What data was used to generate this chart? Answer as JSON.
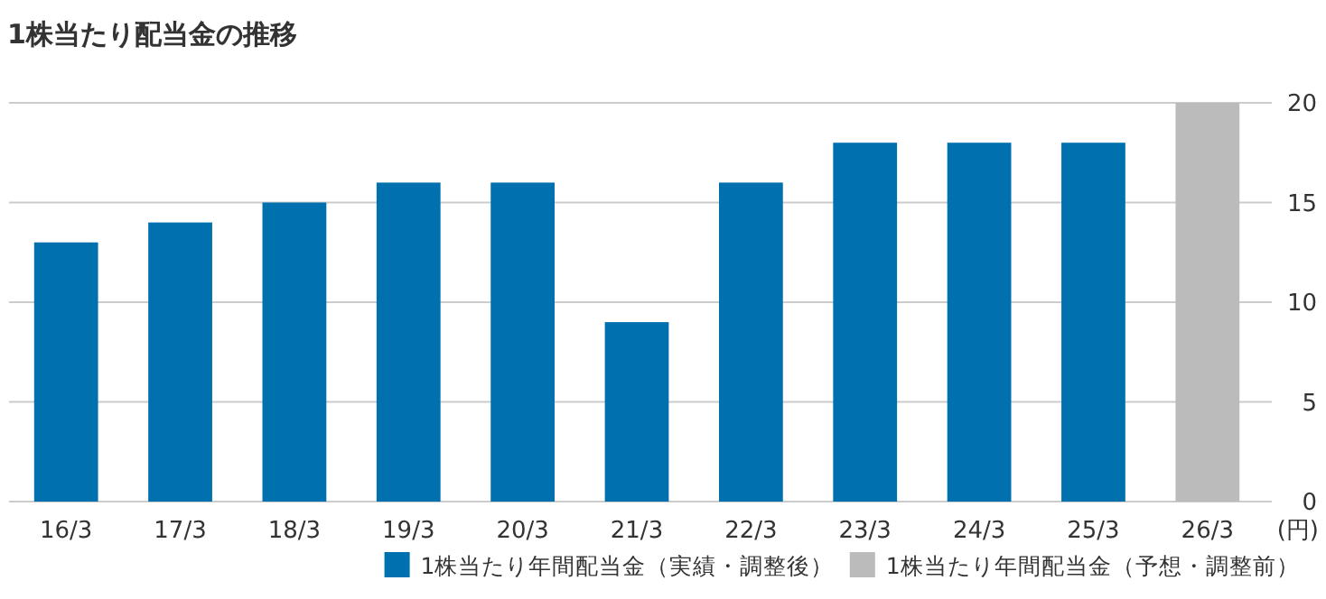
{
  "chart_data": {
    "type": "bar",
    "title": "1株当たり配当金の推移",
    "ylabel": "(円)",
    "categories": [
      "16/3",
      "17/3",
      "18/3",
      "19/3",
      "20/3",
      "21/3",
      "22/3",
      "23/3",
      "24/3",
      "25/3",
      "26/3"
    ],
    "series": [
      {
        "name": "1株当たり年間配当金（実績・調整後）",
        "color": "#0070ae",
        "values": [
          13,
          14,
          15,
          16,
          16,
          9,
          16,
          18,
          18,
          18,
          null
        ]
      },
      {
        "name": "1株当たり年間配当金（予想・調整前）",
        "color": "#bbbbbb",
        "values": [
          null,
          null,
          null,
          null,
          null,
          null,
          null,
          null,
          null,
          null,
          20
        ]
      }
    ],
    "ylim": [
      0,
      20
    ],
    "yticks": [
      0,
      5,
      10,
      15,
      20
    ],
    "grid": "y",
    "legend": "bottom right"
  }
}
